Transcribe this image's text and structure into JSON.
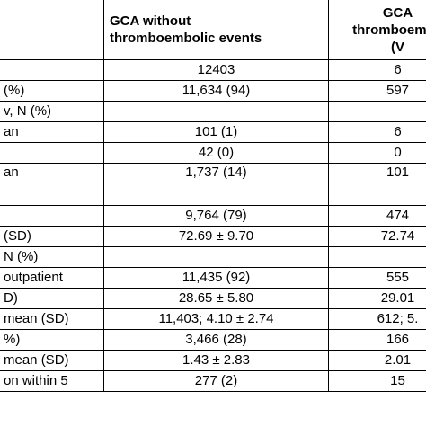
{
  "table": {
    "header": [
      null,
      [
        "GCA without",
        "thromboembolic events"
      ],
      [
        "GCA",
        "thromboembo",
        "(V"
      ]
    ],
    "rows": [
      [
        null,
        "12403",
        "6"
      ],
      [
        "(%)",
        "11,634 (94)",
        "597"
      ],
      [
        "v, N (%)",
        null,
        null
      ],
      [
        "an",
        "101 (1)",
        "6"
      ],
      [
        null,
        "42 (0)",
        "0"
      ],
      [
        "an",
        "1,737 (14)",
        "101"
      ],
      [
        null,
        "9,764 (79)",
        "474"
      ],
      [
        "(SD)",
        "72.69 ± 9.70",
        "72.74"
      ],
      [
        "N (%)",
        null,
        null
      ],
      [
        "outpatient",
        "11,435 (92)",
        "555"
      ],
      [
        "D)",
        "28.65 ± 5.80",
        "29.01"
      ],
      [
        "mean (SD)",
        "11,403; 4.10 ± 2.74",
        "612; 5."
      ],
      [
        "%)",
        "3,466 (28)",
        "166"
      ],
      [
        "mean (SD)",
        "1.43 ± 2.83",
        "2.01"
      ],
      [
        "on within 5",
        "277 (2)",
        "15"
      ]
    ]
  }
}
